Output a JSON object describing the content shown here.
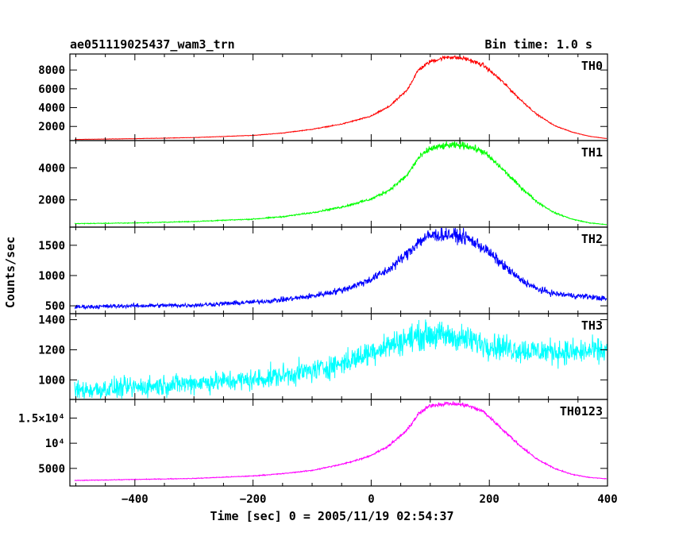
{
  "chart_data": {
    "type": "line",
    "title": "ae051119025437_wam3_trn",
    "subtitle": "Bin time: 1.0 s",
    "xlabel": "Time [sec] 0 = 2005/11/19 02:54:37",
    "ylabel": "Counts/sec",
    "xlim": [
      -510,
      400
    ],
    "xticks": [
      -400,
      -200,
      0,
      200,
      400
    ],
    "xtick_labels": [
      "−400",
      "−200",
      "0",
      "200",
      "400"
    ],
    "grid": false,
    "panels": [
      {
        "name": "TH0",
        "color": "#ff0000",
        "ylim": [
          500,
          9700
        ],
        "yticks": [
          2000,
          4000,
          6000,
          8000
        ],
        "ytick_labels": [
          "2000",
          "4000",
          "6000",
          "8000"
        ],
        "x": [
          -500,
          -400,
          -300,
          -200,
          -150,
          -100,
          -50,
          -20,
          0,
          30,
          60,
          80,
          100,
          130,
          160,
          190,
          220,
          250,
          280,
          310,
          340,
          370,
          400
        ],
        "y": [
          620,
          700,
          820,
          1050,
          1300,
          1700,
          2250,
          2750,
          3100,
          4100,
          5800,
          8000,
          8900,
          9400,
          9200,
          8500,
          6900,
          5000,
          3300,
          2100,
          1400,
          950,
          700
        ],
        "noise": 0.012
      },
      {
        "name": "TH1",
        "color": "#00ff00",
        "ylim": [
          300,
          5700
        ],
        "yticks": [
          2000,
          4000
        ],
        "ytick_labels": [
          "2000",
          "4000"
        ],
        "x": [
          -500,
          -400,
          -300,
          -200,
          -150,
          -100,
          -50,
          -20,
          0,
          30,
          60,
          80,
          100,
          130,
          160,
          190,
          220,
          250,
          280,
          310,
          340,
          370,
          400
        ],
        "y": [
          520,
          560,
          650,
          800,
          950,
          1200,
          1550,
          1850,
          2050,
          2600,
          3500,
          4600,
          5200,
          5400,
          5400,
          5000,
          4000,
          2900,
          1900,
          1200,
          800,
          560,
          450
        ],
        "noise": 0.02
      },
      {
        "name": "TH2",
        "color": "#0000ff",
        "ylim": [
          370,
          1800
        ],
        "yticks": [
          500,
          1000,
          1500
        ],
        "ytick_labels": [
          "500",
          "1000",
          "1500"
        ],
        "x": [
          -500,
          -400,
          -300,
          -200,
          -150,
          -100,
          -50,
          -20,
          0,
          30,
          60,
          80,
          100,
          130,
          160,
          190,
          220,
          250,
          280,
          310,
          340,
          370,
          400
        ],
        "y": [
          480,
          500,
          510,
          560,
          600,
          660,
          760,
          860,
          940,
          1100,
          1350,
          1560,
          1660,
          1680,
          1630,
          1460,
          1200,
          950,
          780,
          700,
          670,
          650,
          610
        ],
        "noise": 0.035
      },
      {
        "name": "TH3",
        "color": "#00ffff",
        "ylim": [
          870,
          1440
        ],
        "yticks": [
          1000,
          1200,
          1400
        ],
        "ytick_labels": [
          "1000",
          "1200",
          "1400"
        ],
        "x": [
          -500,
          -400,
          -300,
          -200,
          -150,
          -100,
          -50,
          -20,
          0,
          30,
          60,
          80,
          100,
          130,
          160,
          190,
          220,
          250,
          280,
          310,
          340,
          370,
          400
        ],
        "y": [
          930,
          950,
          980,
          1000,
          1030,
          1060,
          1110,
          1150,
          1190,
          1230,
          1270,
          1290,
          1300,
          1290,
          1270,
          1240,
          1220,
          1200,
          1190,
          1190,
          1180,
          1190,
          1190
        ],
        "noise": 0.035
      },
      {
        "name": "TH0123",
        "color": "#ff00ff",
        "ylim": [
          1500,
          18700
        ],
        "yticks": [
          5000,
          10000,
          15000
        ],
        "ytick_labels": [
          "5000",
          "10⁴",
          "1.5×10⁴"
        ],
        "x": [
          -500,
          -400,
          -300,
          -200,
          -150,
          -100,
          -50,
          -20,
          0,
          30,
          60,
          80,
          100,
          130,
          160,
          190,
          220,
          250,
          280,
          310,
          340,
          370,
          400
        ],
        "y": [
          2600,
          2800,
          3000,
          3500,
          3950,
          4600,
          5800,
          6800,
          7600,
          9500,
          12500,
          15800,
          17500,
          17900,
          17600,
          16300,
          13000,
          9700,
          6900,
          5000,
          3800,
          3200,
          2900
        ],
        "noise": 0.012
      }
    ]
  }
}
